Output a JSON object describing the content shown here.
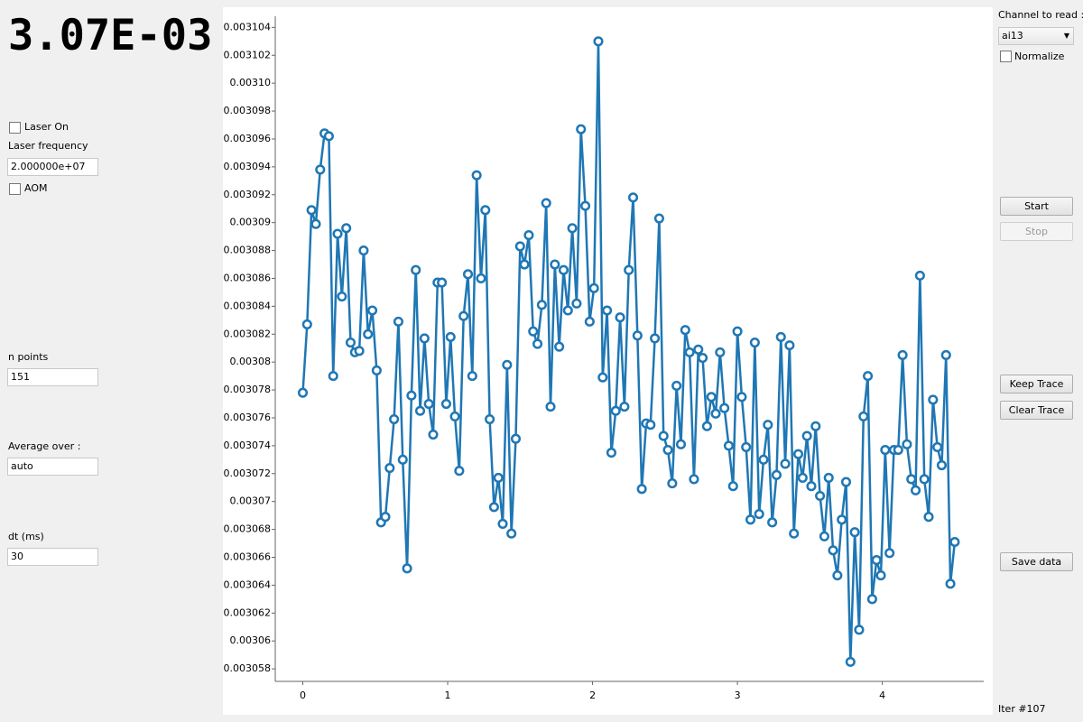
{
  "display": {
    "value": "3.07E-03"
  },
  "controls": {
    "laser_on": "Laser On",
    "laser_frequency_label": "Laser frequency",
    "laser_frequency": "2.000000e+07",
    "aom": "AOM",
    "n_points_label": "n points",
    "n_points": "151",
    "average_label": "Average over :",
    "average": "auto",
    "dt_label": "dt (ms)",
    "dt": "30"
  },
  "channel": {
    "label": "Channel to read :",
    "selected": "ai13",
    "normalize": "Normalize"
  },
  "buttons": {
    "start": "Start",
    "stop": "Stop",
    "keep_trace": "Keep Trace",
    "clear_trace": "Clear Trace",
    "save_data": "Save data"
  },
  "status": "Iter #107",
  "chart_data": {
    "type": "line",
    "color": "#1f77b4",
    "markers": true,
    "x": [
      0,
      0.03,
      0.06,
      0.09,
      0.12,
      0.15,
      0.18,
      0.21,
      0.24,
      0.27,
      0.3,
      0.33,
      0.36,
      0.39,
      0.42,
      0.45,
      0.48,
      0.51,
      0.54,
      0.57,
      0.6,
      0.63,
      0.66,
      0.69,
      0.72,
      0.75,
      0.78,
      0.81,
      0.84,
      0.87,
      0.9,
      0.93,
      0.96,
      0.99,
      1.02,
      1.05,
      1.08,
      1.11,
      1.14,
      1.17,
      1.2,
      1.23,
      1.26,
      1.29,
      1.32,
      1.35,
      1.38,
      1.41,
      1.44,
      1.47,
      1.5,
      1.53,
      1.56,
      1.59,
      1.62,
      1.65,
      1.68,
      1.71,
      1.74,
      1.77,
      1.8,
      1.83,
      1.86,
      1.89,
      1.92,
      1.95,
      1.98,
      2.01,
      2.04,
      2.07,
      2.1,
      2.13,
      2.16,
      2.19,
      2.22,
      2.25,
      2.28,
      2.31,
      2.34,
      2.37,
      2.4,
      2.43,
      2.46,
      2.49,
      2.52,
      2.55,
      2.58,
      2.61,
      2.64,
      2.67,
      2.7,
      2.73,
      2.76,
      2.79,
      2.82,
      2.85,
      2.88,
      2.91,
      2.94,
      2.97,
      3,
      3.03,
      3.06,
      3.09,
      3.12,
      3.15,
      3.18,
      3.21,
      3.24,
      3.27,
      3.3,
      3.33,
      3.36,
      3.39,
      3.42,
      3.45,
      3.48,
      3.51,
      3.54,
      3.57,
      3.6,
      3.63,
      3.66,
      3.69,
      3.72,
      3.75,
      3.78,
      3.81,
      3.84,
      3.87,
      3.9,
      3.93,
      3.96,
      3.99,
      4.02,
      4.05,
      4.08,
      4.11,
      4.14,
      4.17,
      4.2,
      4.23,
      4.26,
      4.29,
      4.32,
      4.35,
      4.38,
      4.41,
      4.44,
      4.47,
      4.5
    ],
    "values": [
      0.0030778,
      0.0030827,
      0.0030909,
      0.0030899,
      0.0030938,
      0.0030964,
      0.0030962,
      0.003079,
      0.0030892,
      0.0030847,
      0.0030896,
      0.0030814,
      0.0030807,
      0.0030808,
      0.003088,
      0.003082,
      0.0030837,
      0.0030794,
      0.0030685,
      0.0030689,
      0.0030724,
      0.0030759,
      0.0030829,
      0.003073,
      0.0030652,
      0.0030776,
      0.0030866,
      0.0030765,
      0.0030817,
      0.003077,
      0.0030748,
      0.0030857,
      0.0030857,
      0.003077,
      0.0030818,
      0.0030761,
      0.0030722,
      0.0030833,
      0.0030863,
      0.003079,
      0.0030934,
      0.003086,
      0.0030909,
      0.0030759,
      0.0030696,
      0.0030717,
      0.0030684,
      0.0030798,
      0.0030677,
      0.0030745,
      0.0030883,
      0.003087,
      0.0030891,
      0.0030822,
      0.0030813,
      0.0030841,
      0.0030914,
      0.0030768,
      0.003087,
      0.0030811,
      0.0030866,
      0.0030837,
      0.0030896,
      0.0030842,
      0.0030967,
      0.0030912,
      0.0030829,
      0.0030853,
      0.003103,
      0.0030789,
      0.0030837,
      0.0030735,
      0.0030765,
      0.0030832,
      0.0030768,
      0.0030866,
      0.0030918,
      0.0030819,
      0.0030709,
      0.0030756,
      0.0030755,
      0.0030817,
      0.0030903,
      0.0030747,
      0.0030737,
      0.0030713,
      0.0030783,
      0.0030741,
      0.0030823,
      0.0030807,
      0.0030716,
      0.0030809,
      0.0030803,
      0.0030754,
      0.0030775,
      0.0030763,
      0.0030807,
      0.0030767,
      0.003074,
      0.0030711,
      0.0030822,
      0.0030775,
      0.0030739,
      0.0030687,
      0.0030814,
      0.0030691,
      0.003073,
      0.0030755,
      0.0030685,
      0.0030719,
      0.0030818,
      0.0030727,
      0.0030812,
      0.0030677,
      0.0030734,
      0.0030717,
      0.0030747,
      0.0030711,
      0.0030754,
      0.0030704,
      0.0030675,
      0.0030717,
      0.0030665,
      0.0030647,
      0.0030687,
      0.0030714,
      0.0030585,
      0.0030678,
      0.0030608,
      0.0030761,
      0.003079,
      0.003063,
      0.0030658,
      0.0030647,
      0.0030737,
      0.0030663,
      0.0030737,
      0.0030737,
      0.0030805,
      0.0030741,
      0.0030716,
      0.0030708,
      0.0030862,
      0.0030716,
      0.0030689,
      0.0030773,
      0.0030739,
      0.0030726,
      0.0030805,
      0.0030641,
      0.0030671
    ],
    "xlim": [
      -0.19,
      4.7
    ],
    "xticks": [
      0,
      1,
      2,
      3,
      4
    ],
    "ylim": [
      0.0030571,
      0.0031048
    ],
    "yticks": [
      0.003058,
      0.00306,
      0.003062,
      0.003064,
      0.003066,
      0.003068,
      0.00307,
      0.003072,
      0.003074,
      0.003076,
      0.003078,
      0.00308,
      0.003082,
      0.003084,
      0.003086,
      0.003088,
      0.00309,
      0.003092,
      0.003094,
      0.003096,
      0.003098,
      {
        "value": 0.0031,
        "label": "0.00310"
      },
      0.003102,
      0.003104
    ]
  }
}
